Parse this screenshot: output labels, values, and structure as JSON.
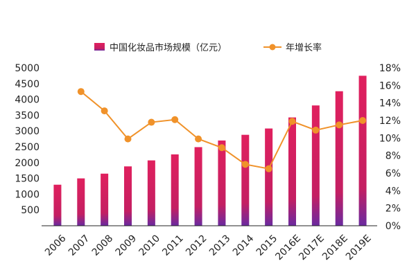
{
  "chart_data": {
    "type": "bar",
    "categories": [
      "2006",
      "2007",
      "2008",
      "2009",
      "2010",
      "2011",
      "2012",
      "2013",
      "2014",
      "2015",
      "2016E",
      "2017E",
      "2018E",
      "2019E"
    ],
    "series": [
      {
        "name": "中国化妆品市场规模（亿元）",
        "type": "bar",
        "axis": "left",
        "values": [
          1300,
          1500,
          1650,
          1880,
          2070,
          2260,
          2490,
          2700,
          2880,
          3080,
          3430,
          3810,
          4260,
          4750
        ]
      },
      {
        "name": "年增长率",
        "type": "line",
        "axis": "right",
        "values": [
          null,
          15.3,
          13.1,
          9.9,
          11.8,
          12.1,
          9.9,
          8.9,
          7.0,
          6.5,
          11.9,
          10.9,
          11.5,
          12.0
        ]
      }
    ],
    "yleft": {
      "ticks": [
        500,
        1000,
        1500,
        2000,
        2500,
        3000,
        3500,
        4000,
        4500,
        5000
      ],
      "tick_labels": [
        "500",
        "1000",
        "1500",
        "2000",
        "2500",
        "3000",
        "3500",
        "4000",
        "4500",
        "5000"
      ],
      "ylim": [
        0,
        5000
      ]
    },
    "yright": {
      "ticks": [
        0,
        2,
        4,
        6,
        8,
        10,
        12,
        14,
        16,
        18
      ],
      "tick_labels": [
        "0%",
        "2%",
        "4%",
        "6%",
        "8%",
        "10%",
        "12%",
        "14%",
        "16%",
        "18%"
      ],
      "ylim": [
        0,
        18
      ]
    },
    "legend": {
      "placement": "top-center",
      "bar_label": "中国化妆品市场规模（亿元）",
      "line_label": "年增长率"
    },
    "colors": {
      "bar_top": "#e0205e",
      "bar_bottom": "#6a2aa0",
      "line": "#f0922a",
      "axis": "#222222"
    },
    "grid": false
  }
}
